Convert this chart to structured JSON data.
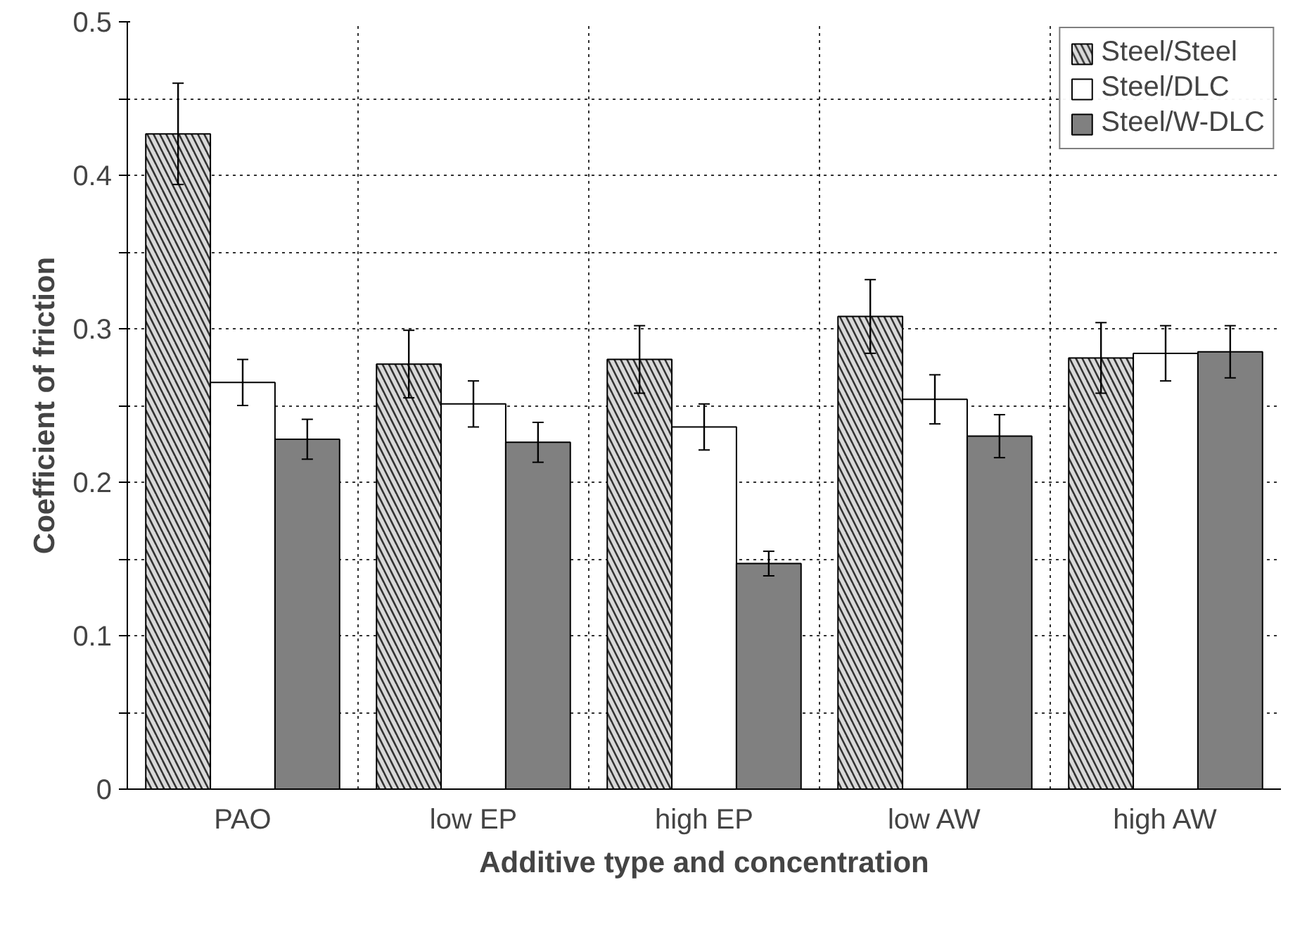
{
  "chart_data": {
    "type": "bar",
    "xlabel": "Additive type and concentration",
    "ylabel": "Coefficient of friction",
    "categories": [
      "PAO",
      "low EP",
      "high EP",
      "low AW",
      "high AW"
    ],
    "series": [
      {
        "name": "Steel/Steel",
        "color": "#d9d9d9",
        "values": [
          0.427,
          0.277,
          0.28,
          0.308,
          0.281
        ],
        "errors": [
          0.033,
          0.022,
          0.022,
          0.024,
          0.023
        ]
      },
      {
        "name": "Steel/DLC",
        "color": "#ffffff",
        "values": [
          0.265,
          0.251,
          0.236,
          0.254,
          0.284
        ],
        "errors": [
          0.015,
          0.015,
          0.015,
          0.016,
          0.018
        ]
      },
      {
        "name": "Steel/W-DLC",
        "color": "#808080",
        "values": [
          0.228,
          0.226,
          0.147,
          0.23,
          0.285
        ],
        "errors": [
          0.013,
          0.013,
          0.008,
          0.014,
          0.017
        ]
      }
    ],
    "ylim": [
      0,
      0.5
    ],
    "yticks": [
      0,
      {
        "value": 0.05,
        "label": null
      },
      0.1,
      {
        "value": 0.15,
        "label": null
      },
      0.2,
      {
        "value": 0.25,
        "label": null
      },
      0.3,
      {
        "value": 0.35,
        "label": null
      },
      0.4,
      {
        "value": 0.45,
        "label": null
      },
      0.5
    ],
    "grid": true,
    "legend": "top right"
  }
}
